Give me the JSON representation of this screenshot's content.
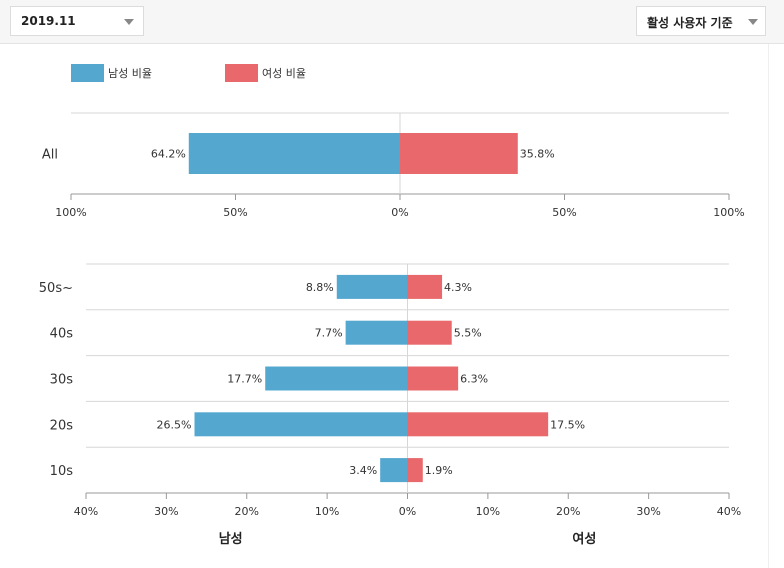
{
  "filters": {
    "period": "2019.11",
    "basis": "활성 사용자 기준"
  },
  "icons": {
    "period_caret": "chevron-down-icon",
    "basis_caret": "chevron-down-icon"
  },
  "colors": {
    "male": "#54a8cf",
    "female": "#e8686b",
    "grid": "#d7d7d7",
    "axis": "#999999"
  },
  "chart_data": [
    {
      "type": "bar",
      "orientation": "horizontal-diverging",
      "legend": {
        "placement": "top-left",
        "entries": [
          "남성 비율",
          "여성 비율"
        ]
      },
      "categories": [
        "All"
      ],
      "series": [
        {
          "name": "남성 비율",
          "values": [
            64.2
          ],
          "labels": [
            "64.2%"
          ]
        },
        {
          "name": "여성 비율",
          "values": [
            35.8
          ],
          "labels": [
            "35.8%"
          ]
        }
      ],
      "xlim": [
        -100,
        100
      ],
      "ticks": [
        -100,
        -50,
        0,
        50,
        100
      ],
      "tick_labels": [
        "100%",
        "50%",
        "0%",
        "50%",
        "100%"
      ],
      "grid": true
    },
    {
      "type": "bar",
      "orientation": "horizontal-diverging",
      "categories": [
        "50s~",
        "40s",
        "30s",
        "20s",
        "10s"
      ],
      "series": [
        {
          "name": "남성",
          "values": [
            8.8,
            7.7,
            17.7,
            26.5,
            3.4
          ],
          "labels": [
            "8.8%",
            "7.7%",
            "17.7%",
            "26.5%",
            "3.4%"
          ]
        },
        {
          "name": "여성",
          "values": [
            4.3,
            5.5,
            6.3,
            17.5,
            1.9
          ],
          "labels": [
            "4.3%",
            "5.5%",
            "6.3%",
            "17.5%",
            "1.9%"
          ]
        }
      ],
      "xlim": [
        -40,
        40
      ],
      "ticks": [
        -40,
        -30,
        -20,
        -10,
        0,
        10,
        20,
        30,
        40
      ],
      "tick_labels": [
        "40%",
        "30%",
        "20%",
        "10%",
        "0%",
        "10%",
        "20%",
        "30%",
        "40%"
      ],
      "side_labels": [
        "남성",
        "여성"
      ],
      "grid": true
    }
  ]
}
